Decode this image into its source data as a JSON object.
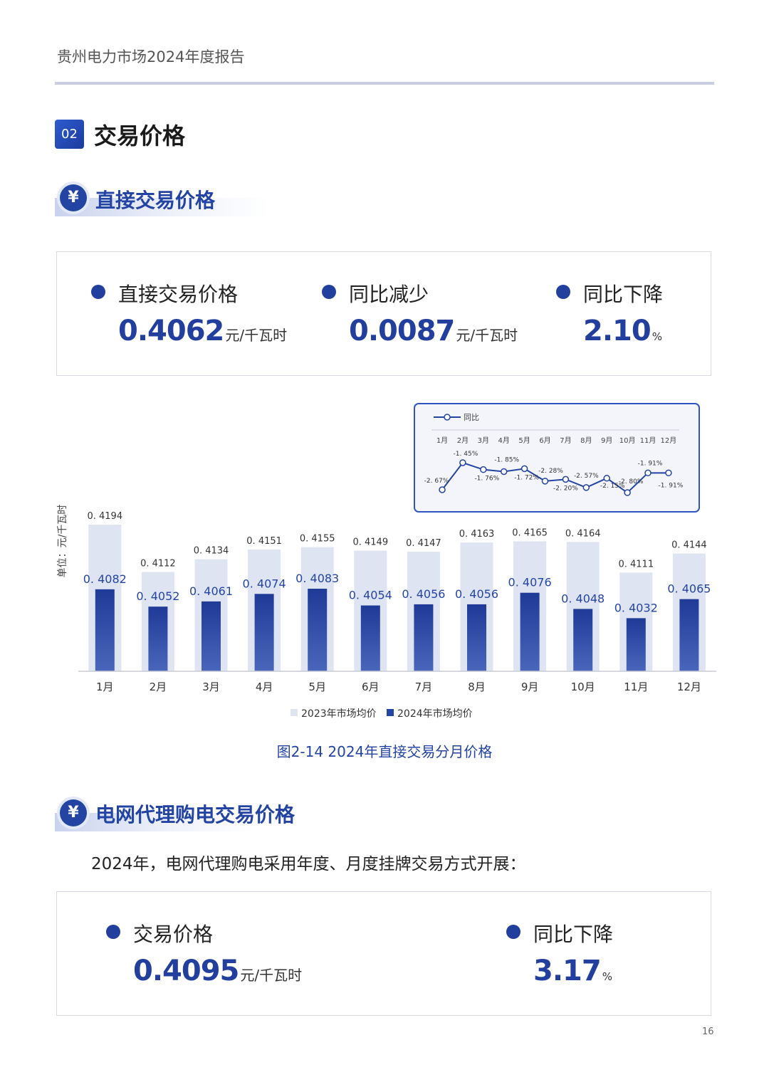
{
  "header": {
    "title": "贵州电力市场2024年度报告",
    "page": "16"
  },
  "section": {
    "number": "02",
    "title": "交易价格"
  },
  "direct": {
    "title": "直接交易价格",
    "kpis": [
      {
        "label": "直接交易价格",
        "value": "0.4062",
        "unit": "元/千瓦时"
      },
      {
        "label": "同比减少",
        "value": "0.0087",
        "unit": "元/千瓦时"
      },
      {
        "label": "同比下降",
        "value": "2.10",
        "unit": "%"
      }
    ]
  },
  "chart_data": {
    "type": "bar",
    "ylabel": "单位：元/千瓦时",
    "categories": [
      "1月",
      "2月",
      "3月",
      "4月",
      "5月",
      "6月",
      "7月",
      "8月",
      "9月",
      "10月",
      "11月",
      "12月"
    ],
    "series": [
      {
        "name": "2023年市场均价",
        "color": "#dfe4f3",
        "values": [
          0.4194,
          0.4112,
          0.4134,
          0.4151,
          0.4155,
          0.4149,
          0.4147,
          0.4163,
          0.4165,
          0.4164,
          0.4111,
          0.4144
        ],
        "labels": [
          "0. 4194",
          "0. 4112",
          "0. 4134",
          "0. 4151",
          "0. 4155",
          "0. 4149",
          "0. 4147",
          "0. 4163",
          "0. 4165",
          "0. 4164",
          "0. 4111",
          "0. 4144"
        ]
      },
      {
        "name": "2024年市场均价",
        "color": "#2344a3",
        "values": [
          0.4082,
          0.4052,
          0.4061,
          0.4074,
          0.4083,
          0.4054,
          0.4056,
          0.4056,
          0.4076,
          0.4048,
          0.4032,
          0.4065
        ],
        "labels": [
          "0. 4082",
          "0. 4052",
          "0. 4061",
          "0. 4074",
          "0. 4083",
          "0. 4054",
          "0. 4056",
          "0. 4056",
          "0. 4076",
          "0. 4048",
          "0. 4032",
          "0. 4065"
        ]
      }
    ],
    "inset": {
      "type": "line",
      "series_name": "同比",
      "values": [
        -2.67,
        -1.45,
        -1.76,
        -1.85,
        -1.72,
        -2.28,
        -2.2,
        -2.57,
        -2.15,
        -2.8,
        -1.91,
        -1.91
      ],
      "labels": [
        "-2. 67%",
        "-1. 45%",
        "-1. 76%",
        "-1. 85%",
        "-1. 72%",
        "-2. 28%",
        "-2. 20%",
        "-2. 57%",
        "-2. 15%",
        "-2. 80%",
        "-1. 91%",
        "-1. 91%"
      ]
    },
    "caption": "图2-14  2024年直接交易分月价格"
  },
  "proxy": {
    "title": "电网代理购电交易价格",
    "text": "2024年，电网代理购电采用年度、月度挂牌交易方式开展：",
    "kpis": [
      {
        "label": "交易价格",
        "value": "0.4095",
        "unit": "元/千瓦时"
      },
      {
        "label": "同比下降",
        "value": "3.17",
        "unit": "%"
      }
    ]
  }
}
